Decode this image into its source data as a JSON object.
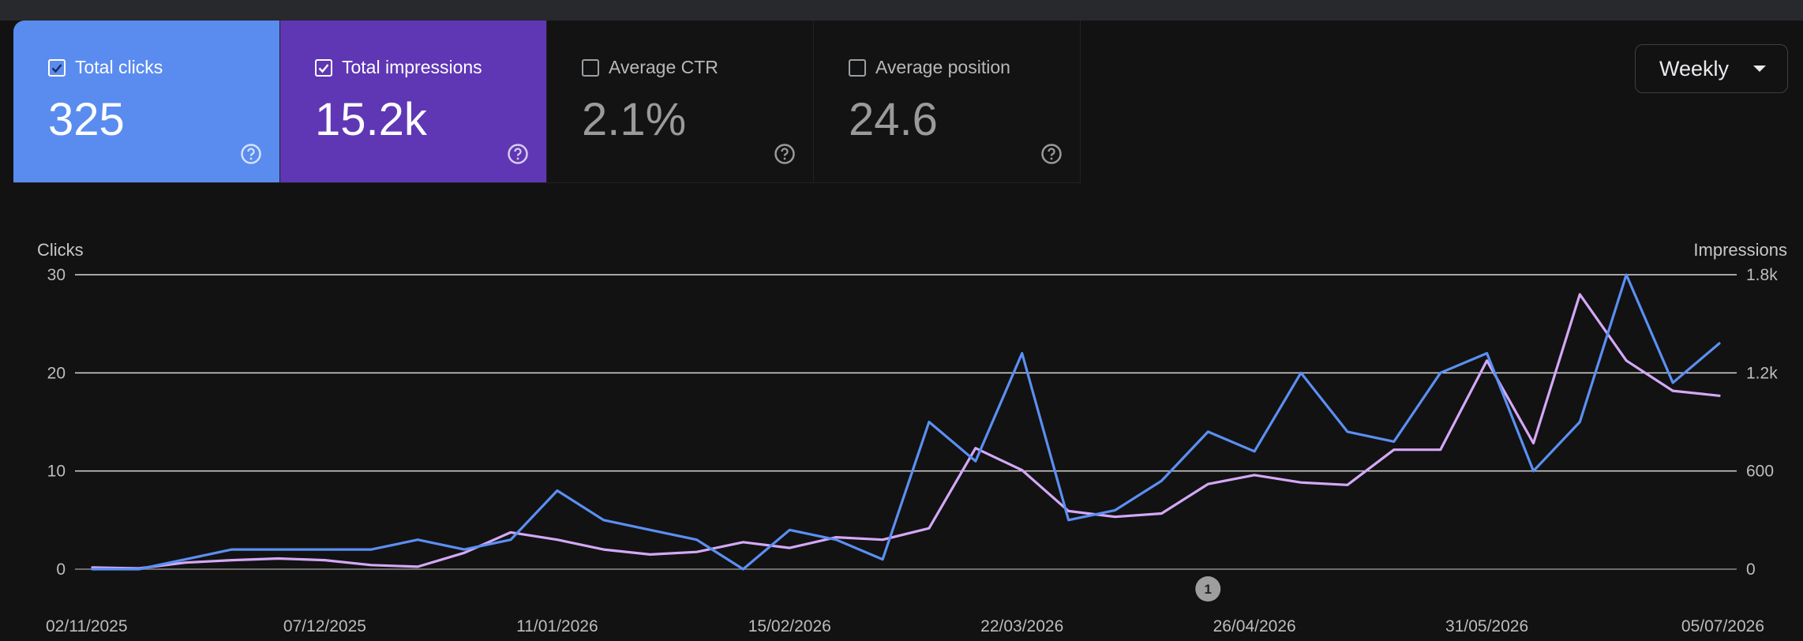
{
  "metrics": [
    {
      "label": "Total clicks",
      "value": "325",
      "checked": true,
      "color": "#5a8cf0"
    },
    {
      "label": "Total impressions",
      "value": "15.2k",
      "checked": true,
      "color": "#5f37b5"
    },
    {
      "label": "Average CTR",
      "value": "2.1%",
      "checked": false
    },
    {
      "label": "Average position",
      "value": "24.6",
      "checked": false
    }
  ],
  "icons": {
    "help": "help-circle-icon",
    "checkbox": "checkbox-icon",
    "dropdown": "caret-down-icon"
  },
  "dropdown": {
    "selected": "Weekly"
  },
  "chart_data": {
    "type": "line",
    "left_axis": {
      "title": "Clicks",
      "ticks": [
        "0",
        "10",
        "20",
        "30"
      ],
      "range": [
        0,
        30
      ]
    },
    "right_axis": {
      "title": "Impressions",
      "ticks": [
        "0",
        "600",
        "1.2k",
        "1.8k"
      ],
      "range": [
        0,
        1800
      ]
    },
    "x_labels": [
      "02/11/2025",
      "07/12/2025",
      "11/01/2026",
      "15/02/2026",
      "22/03/2026",
      "26/04/2026",
      "31/05/2026",
      "05/07/2026"
    ],
    "grid": true,
    "series": [
      {
        "color": "#5b8ff3",
        "axis": "left",
        "values": [
          0,
          0,
          1,
          2,
          2,
          2,
          2,
          3,
          2,
          3,
          8,
          5,
          4,
          3,
          0,
          4,
          3,
          1,
          15,
          11,
          22,
          5,
          6,
          9,
          14,
          12,
          20,
          14,
          13,
          20,
          22,
          10,
          15,
          30,
          19,
          23
        ]
      },
      {
        "color": "#d4a8f7",
        "axis": "right",
        "values": [
          10,
          5,
          40,
          55,
          65,
          55,
          25,
          15,
          100,
          225,
          180,
          120,
          90,
          105,
          165,
          130,
          195,
          180,
          250,
          740,
          605,
          355,
          320,
          340,
          520,
          575,
          530,
          515,
          730,
          730,
          1275,
          770,
          1680,
          1275,
          1090,
          1060
        ]
      }
    ],
    "annotations": [
      {
        "label": "1",
        "near_x": "26/04/2026"
      }
    ]
  }
}
